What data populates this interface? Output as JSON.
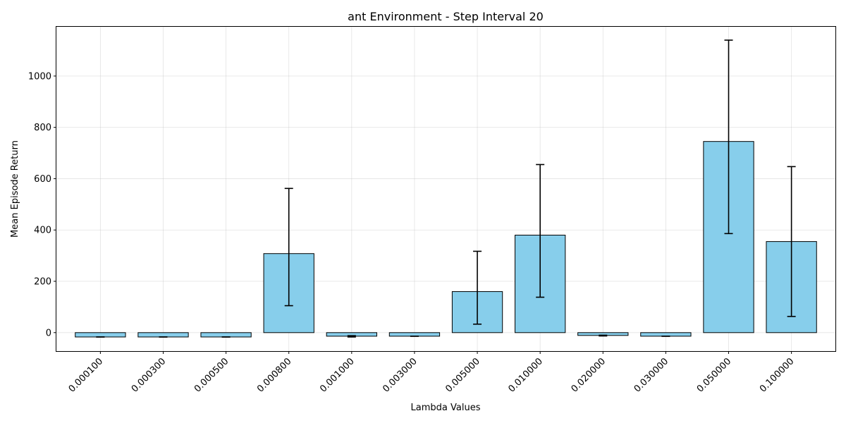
{
  "chart_data": {
    "type": "bar",
    "title": "ant Environment - Step Interval 20",
    "xlabel": "Lambda Values",
    "ylabel": "Mean Episode Return",
    "categories": [
      "0.000100",
      "0.000300",
      "0.000500",
      "0.000800",
      "0.001000",
      "0.003000",
      "0.005000",
      "0.010000",
      "0.020000",
      "0.030000",
      "0.050000",
      "0.100000"
    ],
    "values": [
      -17,
      -17,
      -17,
      308,
      -14,
      -14,
      160,
      380,
      -11,
      -14,
      745,
      355
    ],
    "error_low": [
      -17,
      -17,
      -17,
      105,
      -17,
      -14,
      33,
      138,
      -13,
      -14,
      386,
      63
    ],
    "error_high": [
      -17,
      -17,
      -17,
      562,
      -12,
      -14,
      317,
      655,
      -10,
      -14,
      1140,
      647
    ],
    "ylim": [
      -72,
      1192
    ],
    "yticks": [
      0,
      200,
      400,
      600,
      800,
      1000
    ],
    "grid": true,
    "bar_color": "#87ceeb",
    "edge_color": "#000000"
  }
}
